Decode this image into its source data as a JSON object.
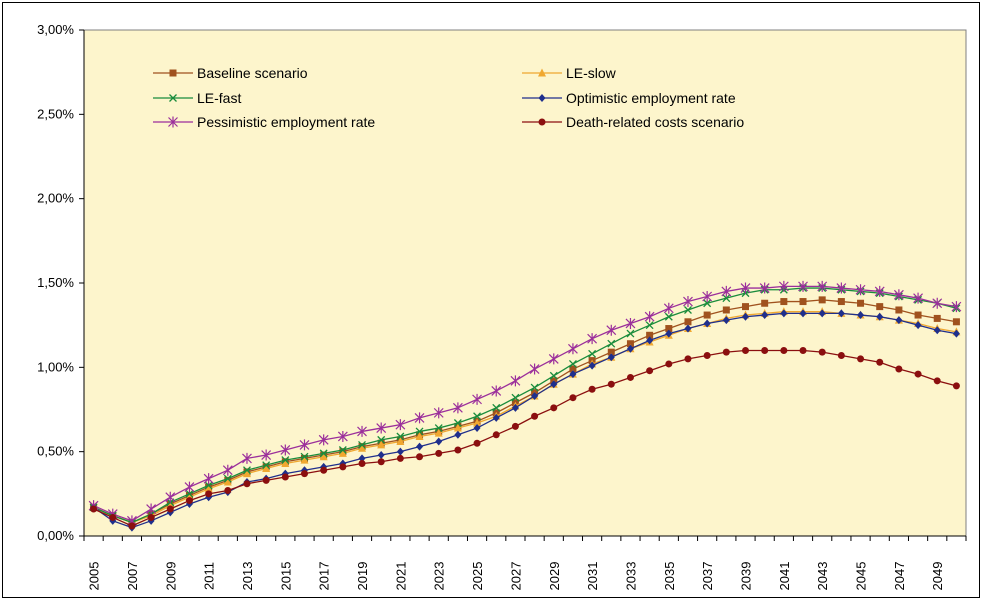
{
  "chart_data": {
    "type": "line",
    "title": "",
    "xlabel": "",
    "ylabel": "",
    "ylim": [
      0,
      3.0
    ],
    "y_ticks": [
      "0,00%",
      "0,50%",
      "1,00%",
      "1,50%",
      "2,00%",
      "2,50%",
      "3,00%"
    ],
    "y_tick_values": [
      0,
      0.5,
      1.0,
      1.5,
      2.0,
      2.5,
      3.0
    ],
    "x_tick_labels": [
      "2005",
      "2007",
      "2009",
      "2011",
      "2013",
      "2015",
      "2017",
      "2019",
      "2021",
      "2023",
      "2025",
      "2027",
      "2029",
      "2031",
      "2033",
      "2035",
      "2037",
      "2039",
      "2041",
      "2043",
      "2045",
      "2047",
      "2049"
    ],
    "x": [
      2005,
      2006,
      2007,
      2008,
      2009,
      2010,
      2011,
      2012,
      2013,
      2014,
      2015,
      2016,
      2017,
      2018,
      2019,
      2020,
      2021,
      2022,
      2023,
      2024,
      2025,
      2026,
      2027,
      2028,
      2029,
      2030,
      2031,
      2032,
      2033,
      2034,
      2035,
      2036,
      2037,
      2038,
      2039,
      2040,
      2041,
      2042,
      2043,
      2044,
      2045,
      2046,
      2047,
      2048,
      2049,
      2050
    ],
    "plot_background": "#fdf5cc",
    "grid": false,
    "legend_position": "top",
    "series": [
      {
        "name": "Baseline scenario",
        "color": "#a0521e",
        "marker": "square",
        "values": [
          0.17,
          0.12,
          0.08,
          0.13,
          0.19,
          0.24,
          0.29,
          0.33,
          0.38,
          0.41,
          0.44,
          0.46,
          0.48,
          0.5,
          0.53,
          0.55,
          0.57,
          0.6,
          0.62,
          0.65,
          0.68,
          0.73,
          0.79,
          0.85,
          0.92,
          0.99,
          1.04,
          1.09,
          1.14,
          1.19,
          1.23,
          1.27,
          1.31,
          1.34,
          1.36,
          1.38,
          1.39,
          1.39,
          1.4,
          1.39,
          1.38,
          1.36,
          1.34,
          1.31,
          1.29,
          1.27
        ]
      },
      {
        "name": "LE-slow",
        "color": "#f0a830",
        "marker": "triangle",
        "values": [
          0.17,
          0.12,
          0.08,
          0.12,
          0.18,
          0.23,
          0.28,
          0.32,
          0.37,
          0.4,
          0.43,
          0.45,
          0.47,
          0.49,
          0.52,
          0.54,
          0.56,
          0.59,
          0.61,
          0.64,
          0.67,
          0.71,
          0.77,
          0.83,
          0.9,
          0.96,
          1.02,
          1.06,
          1.11,
          1.15,
          1.19,
          1.23,
          1.26,
          1.29,
          1.31,
          1.32,
          1.33,
          1.33,
          1.33,
          1.32,
          1.31,
          1.3,
          1.28,
          1.26,
          1.23,
          1.21
        ]
      },
      {
        "name": "LE-fast",
        "color": "#1a8c3c",
        "marker": "x",
        "values": [
          0.17,
          0.12,
          0.08,
          0.13,
          0.2,
          0.25,
          0.3,
          0.34,
          0.39,
          0.42,
          0.45,
          0.47,
          0.49,
          0.51,
          0.54,
          0.57,
          0.59,
          0.62,
          0.64,
          0.67,
          0.71,
          0.76,
          0.82,
          0.88,
          0.95,
          1.02,
          1.08,
          1.14,
          1.2,
          1.25,
          1.3,
          1.34,
          1.38,
          1.41,
          1.44,
          1.46,
          1.46,
          1.47,
          1.47,
          1.46,
          1.45,
          1.44,
          1.42,
          1.4,
          1.38,
          1.35
        ]
      },
      {
        "name": "Optimistic employment rate",
        "color": "#1f2f8c",
        "marker": "diamond",
        "values": [
          0.17,
          0.09,
          0.05,
          0.09,
          0.14,
          0.19,
          0.23,
          0.26,
          0.32,
          0.34,
          0.37,
          0.39,
          0.41,
          0.43,
          0.46,
          0.48,
          0.5,
          0.53,
          0.56,
          0.6,
          0.64,
          0.7,
          0.76,
          0.83,
          0.9,
          0.96,
          1.01,
          1.06,
          1.11,
          1.16,
          1.2,
          1.23,
          1.26,
          1.28,
          1.3,
          1.31,
          1.32,
          1.32,
          1.32,
          1.32,
          1.31,
          1.3,
          1.28,
          1.25,
          1.22,
          1.2
        ]
      },
      {
        "name": "Pessimistic employment rate",
        "color": "#9b2f9b",
        "marker": "star",
        "values": [
          0.18,
          0.13,
          0.09,
          0.16,
          0.23,
          0.29,
          0.34,
          0.39,
          0.46,
          0.48,
          0.51,
          0.54,
          0.57,
          0.59,
          0.62,
          0.64,
          0.66,
          0.7,
          0.73,
          0.76,
          0.81,
          0.86,
          0.92,
          0.99,
          1.05,
          1.11,
          1.17,
          1.22,
          1.26,
          1.3,
          1.35,
          1.39,
          1.42,
          1.45,
          1.47,
          1.47,
          1.48,
          1.48,
          1.48,
          1.47,
          1.46,
          1.45,
          1.43,
          1.41,
          1.38,
          1.36
        ]
      },
      {
        "name": "Death-related costs scenario",
        "color": "#8b0f0f",
        "marker": "circle",
        "values": [
          0.16,
          0.11,
          0.06,
          0.11,
          0.16,
          0.21,
          0.25,
          0.27,
          0.31,
          0.33,
          0.35,
          0.37,
          0.39,
          0.41,
          0.43,
          0.44,
          0.46,
          0.47,
          0.49,
          0.51,
          0.55,
          0.6,
          0.65,
          0.71,
          0.76,
          0.82,
          0.87,
          0.9,
          0.94,
          0.98,
          1.02,
          1.05,
          1.07,
          1.09,
          1.1,
          1.1,
          1.1,
          1.1,
          1.09,
          1.07,
          1.05,
          1.03,
          0.99,
          0.96,
          0.92,
          0.89
        ]
      }
    ]
  }
}
